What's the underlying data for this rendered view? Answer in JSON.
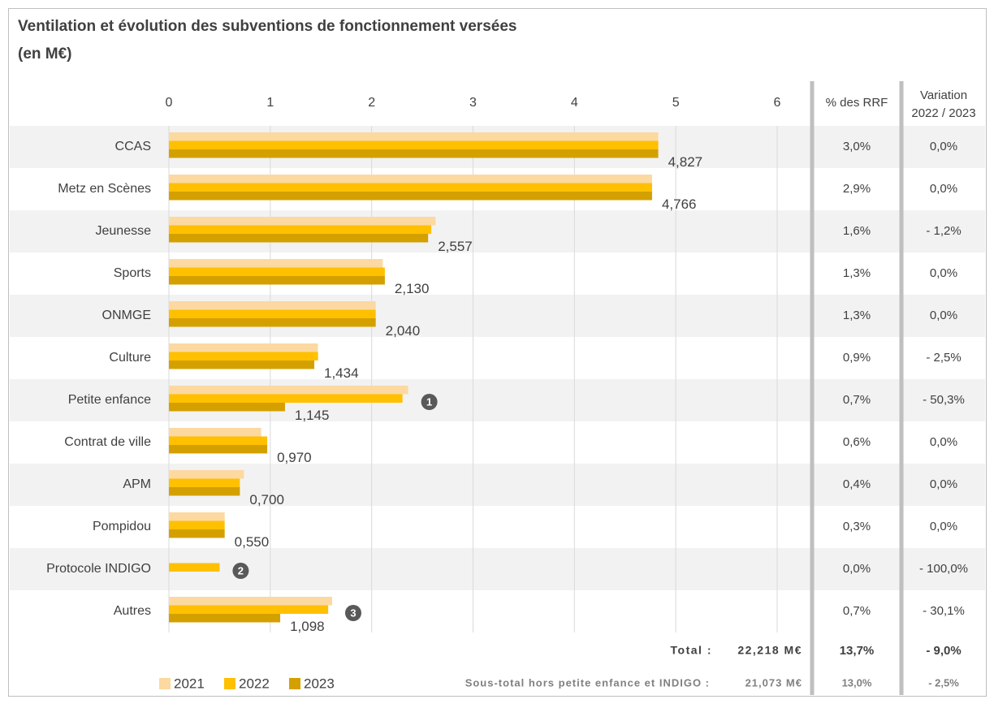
{
  "chart_data": {
    "type": "hbar",
    "title": [
      "Ventilation et évolution des subventions de fonctionnement  versées",
      "(en M€)"
    ],
    "categories": [
      "CCAS",
      "Metz en Scènes",
      "Jeunesse",
      "Sports",
      "ONMGE",
      "Culture",
      "Petite enfance",
      "Contrat de ville",
      "APM",
      "Pompidou",
      "Protocole INDIGO",
      "Autres"
    ],
    "series": [
      {
        "name": "2021",
        "color": "#fcd9a0",
        "values": [
          4.827,
          4.766,
          2.63,
          2.11,
          2.04,
          1.47,
          2.36,
          0.91,
          0.74,
          0.55,
          null,
          1.61
        ]
      },
      {
        "name": "2022",
        "color": "#ffc000",
        "values": [
          4.827,
          4.766,
          2.588,
          2.13,
          2.04,
          1.471,
          2.304,
          0.97,
          0.7,
          0.55,
          0.5,
          1.571
        ]
      },
      {
        "name": "2023",
        "color": "#d4a000",
        "values": [
          4.827,
          4.766,
          2.557,
          2.13,
          2.04,
          1.434,
          1.145,
          0.97,
          0.7,
          0.55,
          0,
          1.098
        ],
        "value_labels": [
          "4,827",
          "4,766",
          "2,557",
          "2,130",
          "2,040",
          "1,434",
          "1,145",
          "0,970",
          "0,700",
          "0,550",
          null,
          "1,098"
        ]
      }
    ],
    "annotations": [
      null,
      null,
      null,
      null,
      null,
      null,
      "1",
      null,
      null,
      null,
      "2",
      "3"
    ],
    "xlim": [
      0,
      6
    ],
    "xticks": [
      0,
      1,
      2,
      3,
      4,
      5,
      6
    ],
    "grid": true
  },
  "table": {
    "headers": [
      [
        "% des RRF"
      ],
      [
        "Variation",
        "2022 / 2023"
      ]
    ],
    "rows": [
      [
        "3,0%",
        "0,0%"
      ],
      [
        "2,9%",
        "0,0%"
      ],
      [
        "1,6%",
        "- 1,2%"
      ],
      [
        "1,3%",
        "0,0%"
      ],
      [
        "1,3%",
        "0,0%"
      ],
      [
        "0,9%",
        "- 2,5%"
      ],
      [
        "0,7%",
        "- 50,3%"
      ],
      [
        "0,6%",
        "0,0%"
      ],
      [
        "0,4%",
        "0,0%"
      ],
      [
        "0,3%",
        "0,0%"
      ],
      [
        "0,0%",
        "- 100,0%"
      ],
      [
        "0,7%",
        "- 30,1%"
      ]
    ],
    "total": {
      "label": "Total :",
      "amount": "22,218 M€",
      "share": "13,7%",
      "variation": "- 9,0%"
    },
    "subtotal": {
      "label": "Sous-total hors petite enfance et INDIGO :",
      "amount": "21,073 M€",
      "share": "13,0%",
      "variation": "- 2,5%"
    }
  }
}
